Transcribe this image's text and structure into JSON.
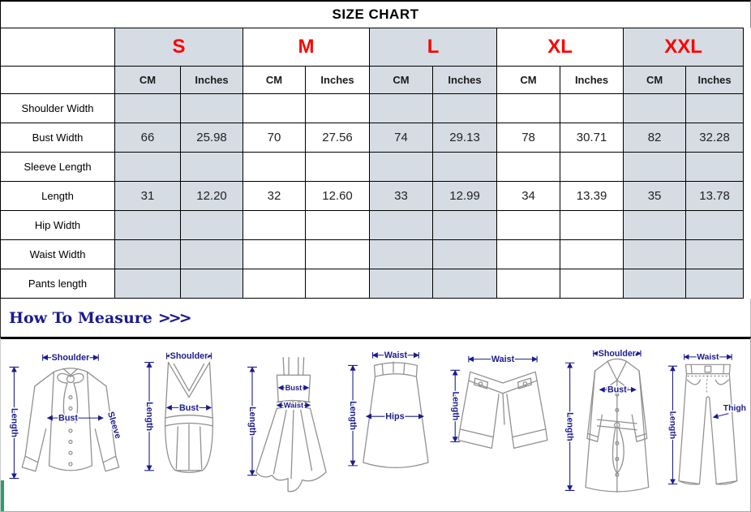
{
  "title": "SIZE CHART",
  "chart_data": {
    "type": "table",
    "title": "SIZE CHART",
    "column_groups": [
      "S",
      "M",
      "L",
      "XL",
      "XXL"
    ],
    "sub_columns": [
      "CM",
      "Inches"
    ],
    "rows": [
      {
        "label": "Shoulder Width",
        "values": [
          "",
          "",
          "",
          "",
          "",
          "",
          "",
          "",
          "",
          ""
        ]
      },
      {
        "label": "Bust Width",
        "values": [
          "66",
          "25.98",
          "70",
          "27.56",
          "74",
          "29.13",
          "78",
          "30.71",
          "82",
          "32.28"
        ]
      },
      {
        "label": "Sleeve Length",
        "values": [
          "",
          "",
          "",
          "",
          "",
          "",
          "",
          "",
          "",
          ""
        ]
      },
      {
        "label": "Length",
        "values": [
          "31",
          "12.20",
          "32",
          "12.60",
          "33",
          "12.99",
          "34",
          "13.39",
          "35",
          "13.78"
        ]
      },
      {
        "label": "Hip Width",
        "values": [
          "",
          "",
          "",
          "",
          "",
          "",
          "",
          "",
          "",
          ""
        ]
      },
      {
        "label": "Waist Width",
        "values": [
          "",
          "",
          "",
          "",
          "",
          "",
          "",
          "",
          "",
          ""
        ]
      },
      {
        "label": "Pants length",
        "values": [
          "",
          "",
          "",
          "",
          "",
          "",
          "",
          "",
          "",
          ""
        ]
      }
    ]
  },
  "how_to_measure": {
    "label": "How To Measure",
    "chevrons": ">>>"
  },
  "figures": [
    {
      "name": "blouse",
      "labels": {
        "shoulder": "Shoulder",
        "bust": "Bust",
        "sleeve": "Sleeve",
        "length": "Length"
      }
    },
    {
      "name": "tank-top",
      "labels": {
        "shoulder": "Shoulder",
        "bust": "Bust",
        "length": "Length"
      }
    },
    {
      "name": "dress",
      "labels": {
        "bust": "Bust",
        "waist": "Waist",
        "length": "Length"
      }
    },
    {
      "name": "skirt",
      "labels": {
        "waist": "Waist",
        "hips": "Hips",
        "length": "Length"
      }
    },
    {
      "name": "shorts",
      "labels": {
        "waist": "Waist",
        "length": "Length"
      }
    },
    {
      "name": "coat",
      "labels": {
        "shoulder": "Shoulder",
        "bust": "Bust",
        "length": "Length"
      }
    },
    {
      "name": "pants",
      "labels": {
        "waist": "Waist",
        "thigh": "Thigh",
        "length": "Length"
      }
    }
  ],
  "colors": {
    "shaded_cell": "#d6dce4",
    "size_label_red": "#ff0000",
    "measure_navy": "#1b1b8e",
    "accent_green": "#2aa06e",
    "border_black": "#000000"
  }
}
